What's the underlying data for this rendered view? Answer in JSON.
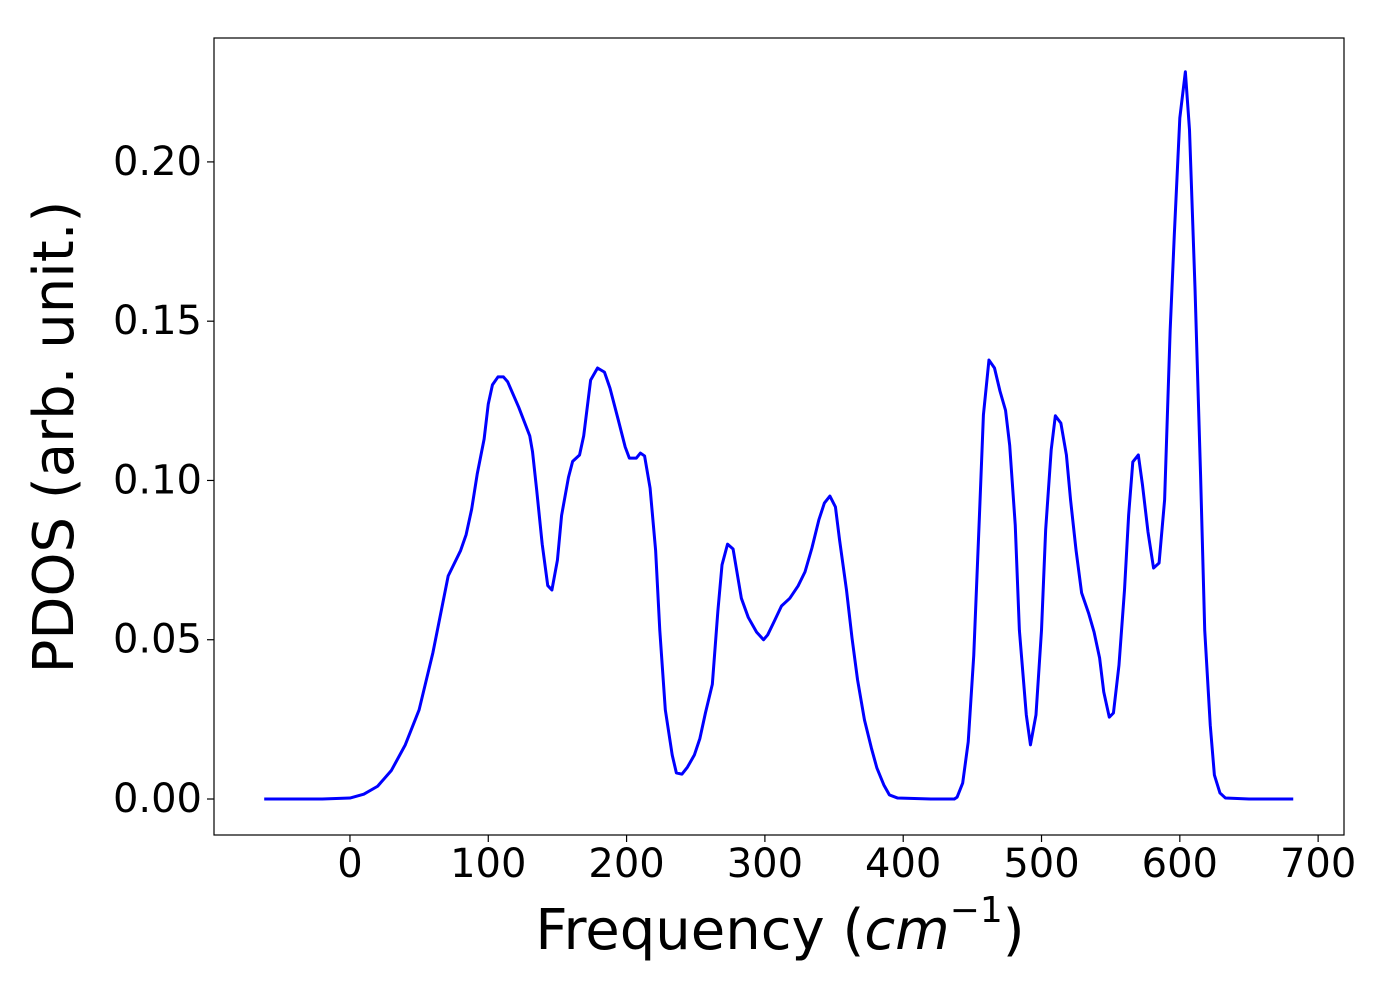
{
  "chart_data": {
    "type": "line",
    "xlabel": [
      "Frequency (",
      "cm",
      "−1",
      ")"
    ],
    "ylabel": "PDOS (arb. unit.)",
    "xlim": [
      -98.3,
      718.7
    ],
    "ylim": [
      -0.0113,
      0.2389
    ],
    "xticks": [
      0,
      100,
      200,
      300,
      400,
      500,
      600,
      700
    ],
    "yticks": [
      {
        "value": 0,
        "label": "0.00"
      },
      {
        "value": 0.05,
        "label": "0.05"
      },
      {
        "value": 0.1,
        "label": "0.10"
      },
      {
        "value": 0.15,
        "label": "0.15"
      },
      {
        "value": 0.2,
        "label": "0.20"
      }
    ],
    "grid": false,
    "series": [
      {
        "color": "#0000ff",
        "x": [
          -62,
          -40,
          -20,
          0,
          10,
          20,
          30,
          40,
          50,
          60,
          71,
          80,
          84,
          88,
          92,
          97,
          100,
          103,
          107,
          111,
          114,
          122,
          130,
          132,
          135,
          139,
          143,
          146,
          150,
          153,
          158,
          161,
          166,
          169,
          174,
          179,
          184,
          188,
          194,
          199,
          202,
          207,
          210,
          213,
          217,
          221,
          224,
          228,
          233,
          236,
          240,
          244,
          249,
          253,
          257,
          262,
          266,
          269,
          273,
          277,
          283,
          288,
          294,
          299,
          302,
          307,
          312,
          318,
          324,
          329,
          334,
          339,
          343,
          347,
          351,
          354,
          359,
          363,
          367,
          372,
          377,
          381,
          386,
          390,
          396,
          420,
          437,
          439,
          443,
          447,
          451,
          455,
          458,
          462,
          466,
          470,
          474,
          477,
          481,
          484,
          489,
          492,
          496,
          500,
          503,
          507,
          510,
          514,
          518,
          521,
          525,
          529,
          534,
          538,
          542,
          545,
          549,
          552,
          556,
          560,
          563,
          566,
          570,
          573,
          577,
          581,
          585,
          589,
          593,
          596,
          600,
          604,
          607,
          611,
          615,
          618,
          622,
          625,
          629,
          633,
          650,
          682
        ],
        "values": [
          0,
          0,
          0,
          0.0003,
          0.0015,
          0.004,
          0.009,
          0.017,
          0.028,
          0.046,
          0.07,
          0.078,
          0.083,
          0.091,
          0.102,
          0.113,
          0.124,
          0.13,
          0.1325,
          0.1325,
          0.131,
          0.123,
          0.114,
          0.109,
          0.097,
          0.08,
          0.067,
          0.0656,
          0.075,
          0.089,
          0.101,
          0.106,
          0.108,
          0.114,
          0.1315,
          0.1353,
          0.134,
          0.129,
          0.119,
          0.1105,
          0.107,
          0.107,
          0.1086,
          0.1077,
          0.0976,
          0.078,
          0.053,
          0.028,
          0.0138,
          0.0082,
          0.0078,
          0.01,
          0.0138,
          0.019,
          0.027,
          0.036,
          0.059,
          0.0735,
          0.08,
          0.0785,
          0.063,
          0.057,
          0.0524,
          0.05,
          0.0515,
          0.056,
          0.0606,
          0.063,
          0.0669,
          0.0713,
          0.0788,
          0.0876,
          0.0929,
          0.0951,
          0.0917,
          0.0813,
          0.0656,
          0.0505,
          0.0374,
          0.0248,
          0.016,
          0.0097,
          0.0044,
          0.0013,
          0.0003,
          0,
          0,
          0.0006,
          0.005,
          0.0179,
          0.045,
          0.0876,
          0.1206,
          0.1378,
          0.1353,
          0.128,
          0.122,
          0.111,
          0.086,
          0.053,
          0.0264,
          0.017,
          0.0264,
          0.053,
          0.0845,
          0.1096,
          0.1203,
          0.118,
          0.108,
          0.0939,
          0.078,
          0.0647,
          0.0584,
          0.0524,
          0.0443,
          0.0336,
          0.0257,
          0.027,
          0.042,
          0.0656,
          0.0892,
          0.1058,
          0.108,
          0.0986,
          0.0838,
          0.0725,
          0.0741,
          0.0939,
          0.147,
          0.177,
          0.2138,
          0.2283,
          0.21,
          0.16,
          0.1017,
          0.053,
          0.0232,
          0.0075,
          0.0019,
          0.0003,
          0,
          0
        ]
      }
    ]
  }
}
